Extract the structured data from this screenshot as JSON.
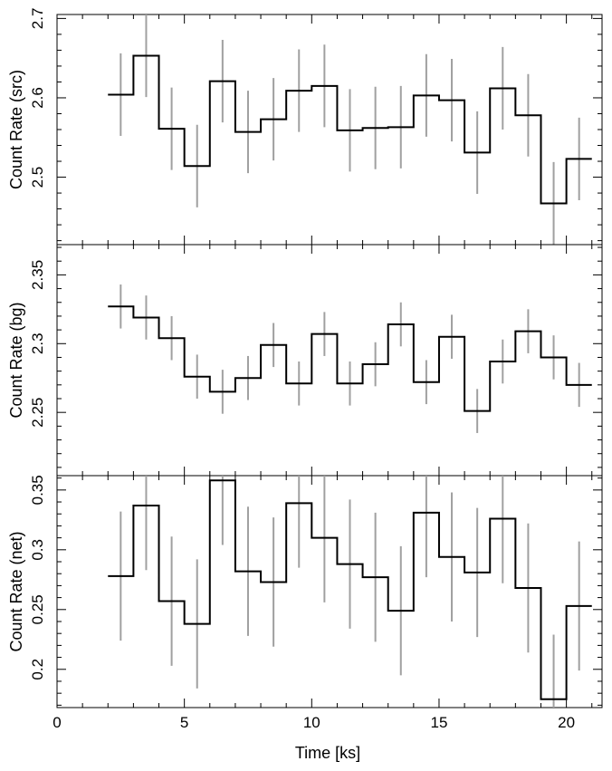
{
  "chart_data": [
    {
      "type": "line",
      "ylabel": "Count Rate (src)",
      "ylim": [
        2.415,
        2.705
      ],
      "yticks": [
        2.5,
        2.6,
        2.7
      ],
      "ytick_labels": [
        "2.5",
        "2.6",
        "2.7"
      ],
      "yminor_step": 0.02,
      "series": [
        {
          "x": [
            2.5,
            3.5,
            4.5,
            5.5,
            6.5,
            7.5,
            8.5,
            9.5,
            10.5,
            11.5,
            12.5,
            13.5,
            14.5,
            15.5,
            16.5,
            17.5,
            18.5,
            19.5,
            20.5
          ],
          "values": [
            2.604,
            2.653,
            2.561,
            2.514,
            2.621,
            2.557,
            2.573,
            2.609,
            2.615,
            2.559,
            2.562,
            2.563,
            2.603,
            2.597,
            2.531,
            2.612,
            2.578,
            2.467,
            2.523
          ],
          "errors": [
            0.052,
            0.052,
            0.052,
            0.052,
            0.052,
            0.052,
            0.052,
            0.052,
            0.052,
            0.052,
            0.052,
            0.052,
            0.052,
            0.052,
            0.052,
            0.052,
            0.052,
            0.052,
            0.052
          ]
        }
      ]
    },
    {
      "type": "line",
      "ylabel": "Count Rate (bg)",
      "ylim": [
        2.204,
        2.372
      ],
      "yticks": [
        2.25,
        2.3,
        2.35
      ],
      "ytick_labels": [
        "2.25",
        "2.3",
        "2.35"
      ],
      "yminor_step": 0.01,
      "series": [
        {
          "x": [
            2.5,
            3.5,
            4.5,
            5.5,
            6.5,
            7.5,
            8.5,
            9.5,
            10.5,
            11.5,
            12.5,
            13.5,
            14.5,
            15.5,
            16.5,
            17.5,
            18.5,
            19.5,
            20.5
          ],
          "values": [
            2.327,
            2.319,
            2.304,
            2.276,
            2.265,
            2.275,
            2.299,
            2.271,
            2.307,
            2.271,
            2.285,
            2.314,
            2.272,
            2.305,
            2.251,
            2.287,
            2.309,
            2.29,
            2.27
          ],
          "errors": [
            0.016,
            0.016,
            0.016,
            0.016,
            0.016,
            0.016,
            0.016,
            0.016,
            0.016,
            0.016,
            0.016,
            0.016,
            0.016,
            0.016,
            0.016,
            0.016,
            0.016,
            0.016,
            0.016
          ]
        }
      ]
    },
    {
      "type": "line",
      "ylabel": "Count Rate (net)",
      "xlabel": "Time [ks]",
      "xlim": [
        0,
        21.4
      ],
      "xticks": [
        0,
        5,
        10,
        15,
        20
      ],
      "xtick_labels": [
        "0",
        "5",
        "10",
        "15",
        "20"
      ],
      "xminor_step": 1,
      "ylim": [
        0.168,
        0.362
      ],
      "yticks": [
        0.2,
        0.25,
        0.3,
        0.35
      ],
      "ytick_labels": [
        "0.2",
        "0.25",
        "0.3",
        "0.35"
      ],
      "yminor_step": 0.01,
      "series": [
        {
          "x": [
            2.5,
            3.5,
            4.5,
            5.5,
            6.5,
            7.5,
            8.5,
            9.5,
            10.5,
            11.5,
            12.5,
            13.5,
            14.5,
            15.5,
            16.5,
            17.5,
            18.5,
            19.5,
            20.5
          ],
          "values": [
            0.278,
            0.337,
            0.257,
            0.238,
            0.358,
            0.282,
            0.273,
            0.339,
            0.31,
            0.288,
            0.277,
            0.249,
            0.331,
            0.294,
            0.281,
            0.326,
            0.268,
            0.175,
            0.253
          ],
          "errors": [
            0.054,
            0.054,
            0.054,
            0.054,
            0.054,
            0.054,
            0.054,
            0.054,
            0.054,
            0.054,
            0.054,
            0.054,
            0.054,
            0.054,
            0.054,
            0.054,
            0.054,
            0.054,
            0.054
          ]
        }
      ]
    }
  ]
}
